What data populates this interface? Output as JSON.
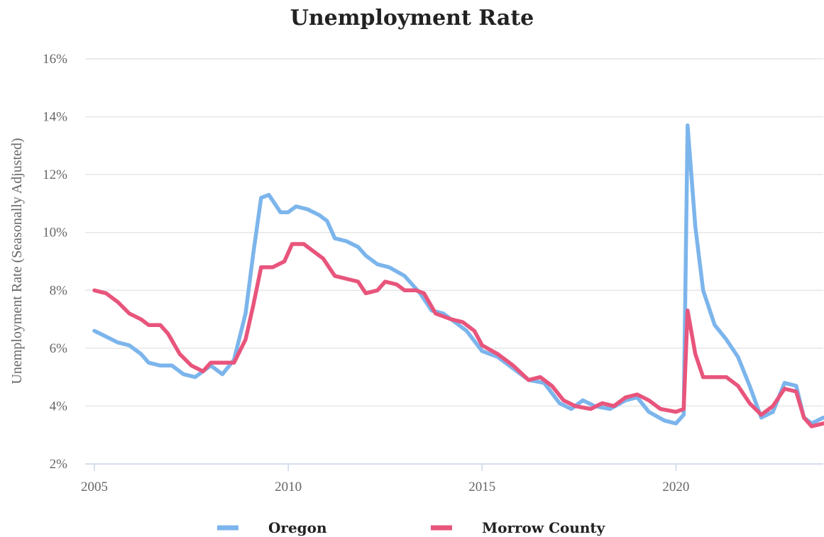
{
  "chart_data": {
    "type": "line",
    "title": "Unemployment Rate",
    "ylabel": "Unemployment Rate (Seasonally Adjusted)",
    "xlabel": "",
    "xlim": [
      2005,
      2023.8
    ],
    "ylim": [
      2,
      16
    ],
    "x_ticks": [
      2005,
      2010,
      2015,
      2020
    ],
    "y_ticks": [
      "2%",
      "4%",
      "6%",
      "8%",
      "10%",
      "12%",
      "14%",
      "16%"
    ],
    "grid": "horizontal",
    "legend_position": "bottom",
    "series": [
      {
        "name": "Oregon",
        "color": "#7cb5ec",
        "points": [
          [
            2005.0,
            6.6
          ],
          [
            2005.3,
            6.4
          ],
          [
            2005.6,
            6.2
          ],
          [
            2005.9,
            6.1
          ],
          [
            2006.2,
            5.8
          ],
          [
            2006.4,
            5.5
          ],
          [
            2006.7,
            5.4
          ],
          [
            2007.0,
            5.4
          ],
          [
            2007.3,
            5.1
          ],
          [
            2007.6,
            5.0
          ],
          [
            2008.0,
            5.4
          ],
          [
            2008.3,
            5.1
          ],
          [
            2008.6,
            5.6
          ],
          [
            2008.9,
            7.2
          ],
          [
            2009.1,
            9.3
          ],
          [
            2009.3,
            11.2
          ],
          [
            2009.5,
            11.3
          ],
          [
            2009.8,
            10.7
          ],
          [
            2010.0,
            10.7
          ],
          [
            2010.2,
            10.9
          ],
          [
            2010.5,
            10.8
          ],
          [
            2010.8,
            10.6
          ],
          [
            2011.0,
            10.4
          ],
          [
            2011.2,
            9.8
          ],
          [
            2011.5,
            9.7
          ],
          [
            2011.8,
            9.5
          ],
          [
            2012.0,
            9.2
          ],
          [
            2012.3,
            8.9
          ],
          [
            2012.6,
            8.8
          ],
          [
            2013.0,
            8.5
          ],
          [
            2013.4,
            7.9
          ],
          [
            2013.7,
            7.3
          ],
          [
            2014.0,
            7.2
          ],
          [
            2014.3,
            6.9
          ],
          [
            2014.6,
            6.6
          ],
          [
            2015.0,
            5.9
          ],
          [
            2015.4,
            5.7
          ],
          [
            2015.8,
            5.3
          ],
          [
            2016.2,
            4.9
          ],
          [
            2016.6,
            4.8
          ],
          [
            2017.0,
            4.1
          ],
          [
            2017.3,
            3.9
          ],
          [
            2017.6,
            4.2
          ],
          [
            2017.9,
            4.0
          ],
          [
            2018.3,
            3.9
          ],
          [
            2018.7,
            4.2
          ],
          [
            2019.0,
            4.3
          ],
          [
            2019.3,
            3.8
          ],
          [
            2019.7,
            3.5
          ],
          [
            2020.0,
            3.4
          ],
          [
            2020.2,
            3.7
          ],
          [
            2020.3,
            13.7
          ],
          [
            2020.5,
            10.2
          ],
          [
            2020.7,
            8.0
          ],
          [
            2021.0,
            6.8
          ],
          [
            2021.3,
            6.3
          ],
          [
            2021.6,
            5.7
          ],
          [
            2021.9,
            4.7
          ],
          [
            2022.2,
            3.6
          ],
          [
            2022.5,
            3.8
          ],
          [
            2022.8,
            4.8
          ],
          [
            2023.1,
            4.7
          ],
          [
            2023.3,
            3.6
          ],
          [
            2023.5,
            3.4
          ],
          [
            2023.8,
            3.6
          ]
        ]
      },
      {
        "name": "Morrow County",
        "color": "#e8557c",
        "points": [
          [
            2005.0,
            8.0
          ],
          [
            2005.3,
            7.9
          ],
          [
            2005.6,
            7.6
          ],
          [
            2005.9,
            7.2
          ],
          [
            2006.2,
            7.0
          ],
          [
            2006.4,
            6.8
          ],
          [
            2006.7,
            6.8
          ],
          [
            2006.9,
            6.5
          ],
          [
            2007.2,
            5.8
          ],
          [
            2007.5,
            5.4
          ],
          [
            2007.8,
            5.2
          ],
          [
            2008.0,
            5.5
          ],
          [
            2008.3,
            5.5
          ],
          [
            2008.6,
            5.5
          ],
          [
            2008.9,
            6.3
          ],
          [
            2009.1,
            7.5
          ],
          [
            2009.3,
            8.8
          ],
          [
            2009.6,
            8.8
          ],
          [
            2009.9,
            9.0
          ],
          [
            2010.1,
            9.6
          ],
          [
            2010.4,
            9.6
          ],
          [
            2010.6,
            9.4
          ],
          [
            2010.9,
            9.1
          ],
          [
            2011.2,
            8.5
          ],
          [
            2011.5,
            8.4
          ],
          [
            2011.8,
            8.3
          ],
          [
            2012.0,
            7.9
          ],
          [
            2012.3,
            8.0
          ],
          [
            2012.5,
            8.3
          ],
          [
            2012.8,
            8.2
          ],
          [
            2013.0,
            8.0
          ],
          [
            2013.3,
            8.0
          ],
          [
            2013.5,
            7.9
          ],
          [
            2013.8,
            7.2
          ],
          [
            2014.2,
            7.0
          ],
          [
            2014.5,
            6.9
          ],
          [
            2014.8,
            6.6
          ],
          [
            2015.0,
            6.1
          ],
          [
            2015.4,
            5.8
          ],
          [
            2015.8,
            5.4
          ],
          [
            2016.2,
            4.9
          ],
          [
            2016.5,
            5.0
          ],
          [
            2016.8,
            4.7
          ],
          [
            2017.1,
            4.2
          ],
          [
            2017.4,
            4.0
          ],
          [
            2017.8,
            3.9
          ],
          [
            2018.1,
            4.1
          ],
          [
            2018.4,
            4.0
          ],
          [
            2018.7,
            4.3
          ],
          [
            2019.0,
            4.4
          ],
          [
            2019.3,
            4.2
          ],
          [
            2019.6,
            3.9
          ],
          [
            2020.0,
            3.8
          ],
          [
            2020.2,
            3.9
          ],
          [
            2020.3,
            7.3
          ],
          [
            2020.5,
            5.8
          ],
          [
            2020.7,
            5.0
          ],
          [
            2021.0,
            5.0
          ],
          [
            2021.3,
            5.0
          ],
          [
            2021.6,
            4.7
          ],
          [
            2021.9,
            4.1
          ],
          [
            2022.2,
            3.7
          ],
          [
            2022.5,
            4.0
          ],
          [
            2022.8,
            4.6
          ],
          [
            2023.1,
            4.5
          ],
          [
            2023.3,
            3.6
          ],
          [
            2023.5,
            3.3
          ],
          [
            2023.8,
            3.4
          ]
        ]
      }
    ]
  }
}
